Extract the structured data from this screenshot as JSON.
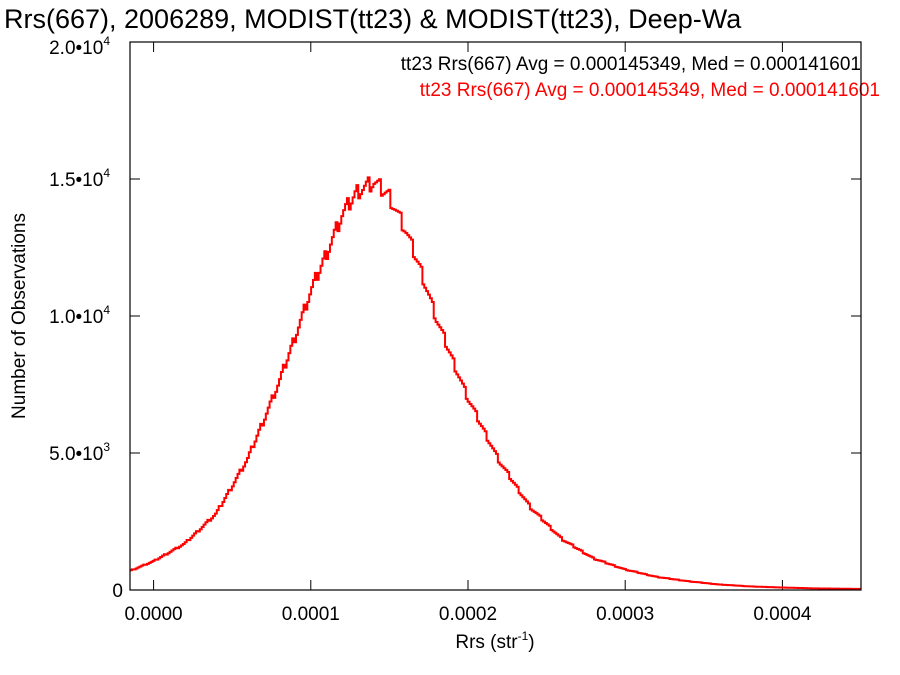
{
  "chart_data": {
    "type": "histogram",
    "title": "Rrs(667), 2006289, MODIST(tt23) & MODIST(tt23), Deep-Wa",
    "xlabel_base": "Rrs (str",
    "xlabel_sup": "-1",
    "xlabel_end": ")",
    "ylabel": "Number of Observations",
    "xlim": [
      -1.5e-05,
      0.00045
    ],
    "ylim": [
      0,
      20000
    ],
    "x_ticks": [
      {
        "value": 0.0,
        "label": "0.0000"
      },
      {
        "value": 0.0001,
        "label": "0.0001"
      },
      {
        "value": 0.0002,
        "label": "0.0002"
      },
      {
        "value": 0.0003,
        "label": "0.0003"
      },
      {
        "value": 0.0004,
        "label": "0.0004"
      }
    ],
    "y_ticks": [
      {
        "value": 0,
        "base": "0",
        "exp": ""
      },
      {
        "value": 5000,
        "base": "5.0•1O",
        "exp": "3"
      },
      {
        "value": 10000,
        "base": "1.0•1O",
        "exp": "4"
      },
      {
        "value": 15000,
        "base": "1.5•1O",
        "exp": "4"
      },
      {
        "value": 20000,
        "base": "2.0•1O",
        "exp": "4"
      }
    ],
    "annotations": [
      {
        "text": "tt23 Rrs(667) Avg = 0.000145349, Med = 0.000141601",
        "color": "#000000"
      },
      {
        "text": "tt23 Rrs(667) Avg = 0.000145349, Med = 0.000141601",
        "color": "#ff0000"
      }
    ],
    "series": [
      {
        "color": "#000000",
        "bin_width": 1.2e-06
      },
      {
        "color": "#ff0000",
        "bin_width": 1.2e-06
      }
    ],
    "curve": {
      "x": [
        -1.5e-05,
        0.0,
        2e-05,
        4e-05,
        6e-05,
        8e-05,
        0.0001,
        0.00011,
        0.00012,
        0.00013,
        0.00014,
        0.00015,
        0.00016,
        0.00017,
        0.00018,
        0.0002,
        0.00022,
        0.00024,
        0.00026,
        0.00028,
        0.0003,
        0.00032,
        0.00034,
        0.00036,
        0.00038,
        0.0004,
        0.00042,
        0.00045
      ],
      "y": [
        700,
        1050,
        1700,
        2800,
        4800,
        7600,
        10900,
        12300,
        13700,
        14600,
        14900,
        14400,
        13200,
        11700,
        9900,
        7000,
        4700,
        3000,
        1850,
        1150,
        750,
        480,
        320,
        200,
        130,
        90,
        60,
        40
      ]
    }
  }
}
